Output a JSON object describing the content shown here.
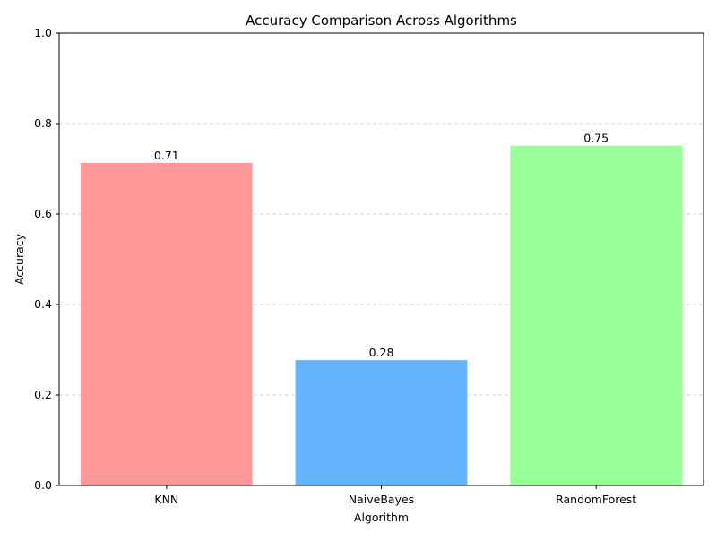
{
  "chart_data": {
    "type": "bar",
    "title": "Accuracy Comparison Across Algorithms",
    "xlabel": "Algorithm",
    "ylabel": "Accuracy",
    "categories": [
      "KNN",
      "NaiveBayes",
      "RandomForest"
    ],
    "values": [
      0.713,
      0.277,
      0.751
    ],
    "data_labels": [
      "0.71",
      "0.28",
      "0.75"
    ],
    "colors": [
      "#ff9999",
      "#66b3ff",
      "#99ff99"
    ],
    "ylim": [
      0,
      1.0
    ],
    "yticks": [
      0.0,
      0.2,
      0.4,
      0.6,
      0.8,
      1.0
    ],
    "ytick_labels": [
      "0.0",
      "0.2",
      "0.4",
      "0.6",
      "0.8",
      "1.0"
    ],
    "grid": {
      "axis": "y",
      "style": "dashed",
      "color": "#c8c8c8"
    },
    "legend": false
  }
}
